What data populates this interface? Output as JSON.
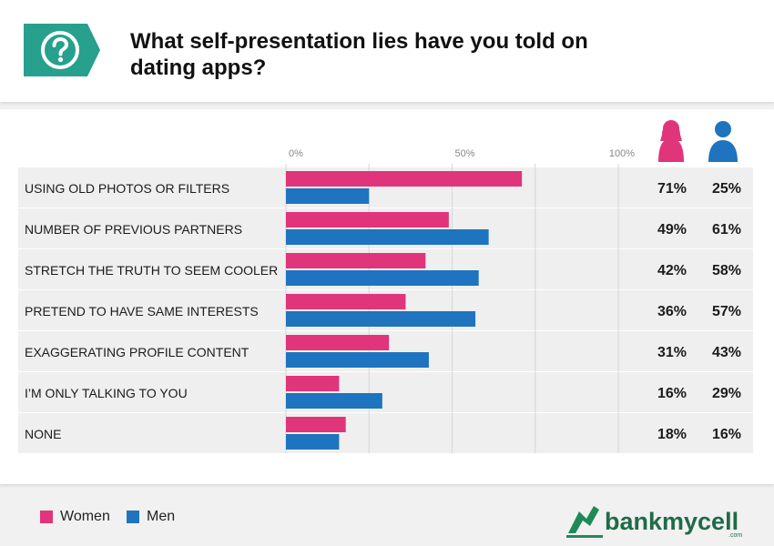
{
  "header": {
    "title": "What self-presentation lies have you told on dating apps?",
    "badge_icon": "question-mark-icon"
  },
  "colors": {
    "women": "#e0357a",
    "men": "#1e74bf",
    "teal": "#27a08d",
    "row_bg": "#efefef"
  },
  "chart_data": {
    "type": "bar",
    "orientation": "horizontal",
    "title": "What self-presentation lies have you told on dating apps?",
    "categories": [
      "USING OLD PHOTOS OR FILTERS",
      "NUMBER OF PREVIOUS PARTNERS",
      "STRETCH THE TRUTH TO SEEM COOLER",
      "PRETEND TO HAVE SAME INTERESTS",
      "EXAGGERATING PROFILE CONTENT",
      "I’M ONLY TALKING TO YOU",
      "NONE"
    ],
    "series": [
      {
        "name": "Women",
        "values": [
          71,
          49,
          42,
          36,
          31,
          16,
          18
        ],
        "color": "#e0357a",
        "icon": "woman-icon"
      },
      {
        "name": "Men",
        "values": [
          25,
          61,
          58,
          57,
          43,
          29,
          16
        ],
        "color": "#1e74bf",
        "icon": "man-icon"
      }
    ],
    "x_ticks": [
      "0%",
      "50%",
      "100%"
    ],
    "xlim": [
      0,
      100
    ],
    "grid": true,
    "legend_position": "bottom-left"
  },
  "legend": {
    "items": [
      {
        "label": "Women"
      },
      {
        "label": "Men"
      }
    ]
  },
  "brand": {
    "name": "bankmycell",
    "suffix": ".com"
  }
}
